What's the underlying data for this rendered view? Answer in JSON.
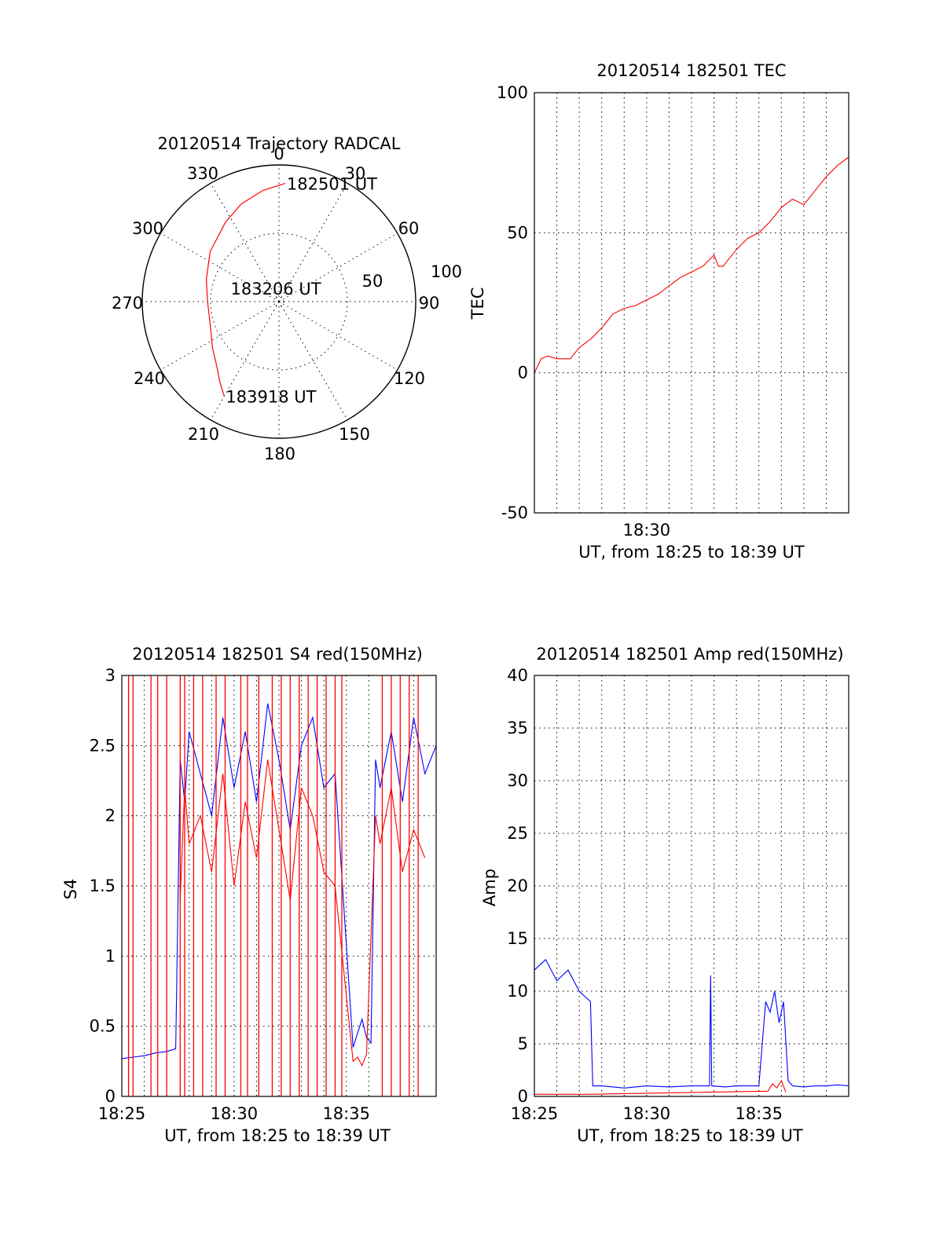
{
  "chart_data": [
    {
      "type": "polar",
      "title": "20120514 Trajectory RADCAL",
      "theta_labels": [
        "0",
        "30",
        "60",
        "90",
        "120",
        "150",
        "180",
        "210",
        "240",
        "270",
        "300",
        "330"
      ],
      "radial_labels": [
        "50",
        "100"
      ],
      "track_color": "#ff0000",
      "track": {
        "azimuth_deg": [
          3,
          352,
          339,
          326,
          306,
          287,
          270,
          257,
          246,
          236,
          224,
          216,
          210
        ],
        "elevation_deg": [
          12,
          16,
          21,
          27,
          34,
          40,
          43,
          43,
          41,
          37,
          31,
          24,
          18
        ]
      },
      "annotations": [
        {
          "text": "182501 UT",
          "azimuth_deg": 3,
          "elevation_deg": 12
        },
        {
          "text": "183206 UT",
          "azimuth_deg": 285,
          "elevation_deg": 56
        },
        {
          "text": "183918 UT",
          "azimuth_deg": 210,
          "elevation_deg": 18
        }
      ]
    },
    {
      "type": "line",
      "title": "20120514 182501 TEC",
      "xlabel": "UT, from 18:25 to 18:39 UT",
      "ylabel": "TEC",
      "x_tick_labels": [
        "18:30"
      ],
      "y_tick_labels": [
        "-50",
        "0",
        "50",
        "100"
      ],
      "xlim": [
        25,
        39
      ],
      "ylim": [
        -50,
        100
      ],
      "grid": true,
      "series": [
        {
          "color": "#ff0000",
          "x": [
            25.0,
            25.3,
            25.6,
            26.0,
            26.6,
            27.0,
            27.5,
            28.0,
            28.5,
            29.0,
            29.5,
            30.0,
            30.5,
            31.0,
            31.5,
            32.0,
            32.5,
            33.0,
            33.2,
            33.4,
            34.0,
            34.5,
            35.0,
            35.5,
            36.0,
            36.5,
            37.0,
            37.5,
            38.0,
            38.5,
            39.0
          ],
          "y": [
            0,
            5,
            6,
            5,
            5,
            9,
            12,
            16,
            21,
            23,
            24,
            26,
            28,
            31,
            34,
            36,
            38,
            42,
            38,
            38,
            44,
            48,
            50,
            54,
            59,
            62,
            60,
            65,
            70,
            74,
            77
          ]
        }
      ]
    },
    {
      "type": "line",
      "title": "20120514 182501 S4 red(150MHz)",
      "xlabel": "UT, from 18:25 to 18:39 UT",
      "ylabel": "S4",
      "x_tick_labels": [
        "18:25",
        "18:30",
        "18:35"
      ],
      "y_tick_labels": [
        "0",
        "0.5",
        "1",
        "1.5",
        "2",
        "2.5",
        "3"
      ],
      "xlim": [
        25,
        39
      ],
      "ylim": [
        0,
        3
      ],
      "grid": true,
      "series": [
        {
          "color": "#0000ff",
          "x": [
            25.0,
            25.5,
            26.0,
            26.5,
            27.0,
            27.4,
            27.6,
            27.8,
            28.0,
            28.5,
            29.0,
            29.5,
            30.0,
            30.5,
            31.0,
            31.5,
            32.0,
            32.5,
            33.0,
            33.5,
            34.0,
            34.5,
            35.3,
            35.5,
            35.7,
            35.9,
            36.1,
            36.3,
            36.5,
            37.0,
            37.5,
            38.0,
            38.5,
            39.0
          ],
          "y": [
            0.27,
            0.28,
            0.29,
            0.31,
            0.32,
            0.34,
            2.4,
            2.1,
            2.6,
            2.3,
            2.0,
            2.7,
            2.2,
            2.6,
            2.1,
            2.8,
            2.4,
            1.9,
            2.5,
            2.7,
            2.2,
            2.3,
            0.35,
            0.45,
            0.55,
            0.42,
            0.38,
            2.4,
            2.2,
            2.6,
            2.1,
            2.7,
            2.3,
            2.5
          ]
        },
        {
          "color": "#ff0000",
          "x": [
            27.6,
            27.8,
            28.0,
            28.5,
            29.0,
            29.5,
            30.0,
            30.5,
            31.0,
            31.5,
            32.0,
            32.5,
            33.0,
            33.5,
            34.0,
            34.5,
            35.3,
            35.5,
            35.7,
            35.9,
            36.3,
            36.5,
            37.0,
            37.5,
            38.0,
            38.5
          ],
          "y": [
            1.4,
            2.2,
            1.8,
            2.0,
            1.6,
            2.3,
            1.5,
            2.1,
            1.7,
            2.4,
            1.9,
            1.4,
            2.2,
            2.0,
            1.6,
            1.5,
            0.25,
            0.28,
            0.22,
            0.3,
            2.0,
            1.8,
            2.2,
            1.6,
            1.9,
            1.7
          ]
        }
      ]
    },
    {
      "type": "line",
      "title": "20120514 182501 Amp red(150MHz)",
      "xlabel": "UT, from 18:25 to 18:39 UT",
      "ylabel": "Amp",
      "x_tick_labels": [
        "18:25",
        "18:30",
        "18:35"
      ],
      "y_tick_labels": [
        "0",
        "5",
        "10",
        "15",
        "20",
        "25",
        "30",
        "35",
        "40"
      ],
      "xlim": [
        25,
        39
      ],
      "ylim": [
        0,
        40
      ],
      "grid": true,
      "series": [
        {
          "color": "#0000ff",
          "x": [
            25.0,
            25.5,
            26.0,
            26.5,
            27.0,
            27.5,
            27.6,
            28.0,
            29.0,
            30.0,
            31.0,
            32.0,
            32.8,
            32.85,
            32.9,
            33.5,
            34.0,
            34.5,
            35.0,
            35.3,
            35.5,
            35.7,
            35.9,
            36.1,
            36.3,
            36.5,
            37.0,
            37.5,
            38.0,
            38.5,
            39.0
          ],
          "y": [
            12,
            13,
            11,
            12,
            10,
            9,
            1,
            1,
            0.8,
            1,
            0.9,
            1,
            1,
            11.5,
            1,
            0.9,
            1,
            1,
            1,
            9,
            8,
            10,
            7,
            9,
            1.5,
            1,
            0.9,
            1,
            1,
            1.1,
            1
          ]
        },
        {
          "color": "#ff0000",
          "x": [
            25.0,
            26.0,
            27.0,
            27.5,
            35.4,
            35.6,
            35.8,
            36.0,
            36.2
          ],
          "y": [
            0.2,
            0.2,
            0.2,
            0.2,
            0.5,
            1.2,
            0.8,
            1.5,
            0.4
          ]
        }
      ]
    }
  ]
}
